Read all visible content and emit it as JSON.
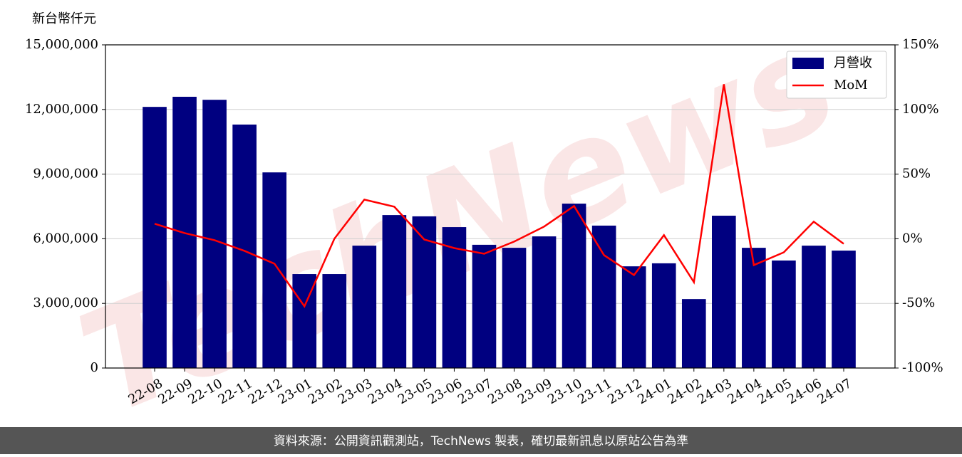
{
  "chart_data": {
    "type": "bar",
    "y_label": "新台幣仟元",
    "watermark": "TechNews",
    "footer": "資料來源：公開資訊觀測站，TechNews 製表，確切最新訊息以原站公告為準",
    "categories": [
      "22-08",
      "22-09",
      "22-10",
      "22-11",
      "22-12",
      "23-01",
      "23-02",
      "23-03",
      "23-04",
      "23-05",
      "23-06",
      "23-07",
      "23-08",
      "23-09",
      "23-10",
      "23-11",
      "23-12",
      "24-01",
      "24-02",
      "24-03",
      "24-04",
      "24-05",
      "24-06",
      "24-07"
    ],
    "series": [
      {
        "name": "月營收",
        "type": "bar",
        "color": "#000080",
        "values": [
          12120000,
          12590000,
          12450000,
          11300000,
          9080000,
          4360000,
          4360000,
          5680000,
          7100000,
          7040000,
          6540000,
          5720000,
          5580000,
          6110000,
          7630000,
          6610000,
          4720000,
          4860000,
          3200000,
          7070000,
          5580000,
          4990000,
          5680000,
          5450000
        ]
      },
      {
        "name": "MoM",
        "type": "line",
        "color": "#ff0000",
        "axis": "y2",
        "values": [
          11.6,
          4.4,
          -1.1,
          -9.4,
          -19.3,
          -52.3,
          0,
          30.3,
          24.8,
          -0.6,
          -7.2,
          -11.6,
          -2.2,
          9.4,
          25.3,
          -12.7,
          -28.1,
          2.8,
          -33.6,
          119.5,
          -20.4,
          -10.5,
          13.2,
          -3.9
        ]
      }
    ],
    "ylim": [
      0,
      15000000
    ],
    "yticks": [
      0,
      {
        "value": 3000000,
        "label": "3,000,000"
      },
      {
        "value": 6000000,
        "label": "6,000,000"
      },
      {
        "value": 9000000,
        "label": "9,000,000"
      },
      {
        "value": 12000000,
        "label": "12,000,000"
      },
      {
        "value": 15000000,
        "label": "15,000,000"
      }
    ],
    "y2lim": [
      -100,
      150
    ],
    "y2ticks": [
      {
        "value": -100,
        "label": "-100%"
      },
      {
        "value": -50,
        "label": "-50%"
      },
      {
        "value": 0,
        "label": "0%"
      },
      {
        "value": 50,
        "label": "50%"
      },
      {
        "value": 100,
        "label": "100%"
      },
      {
        "value": 150,
        "label": "150%"
      }
    ],
    "grid": true,
    "legend": "upper right"
  }
}
